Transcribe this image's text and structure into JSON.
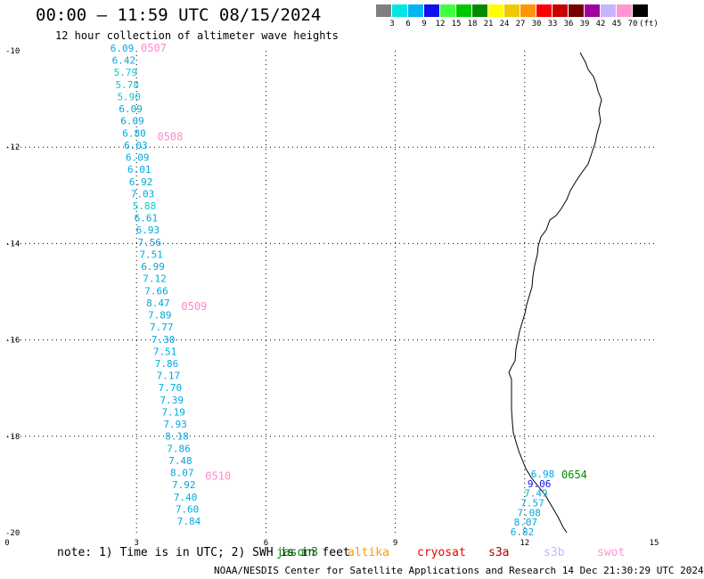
{
  "header": {
    "title": "00:00 – 11:59 UTC 08/15/2024",
    "subtitle": "12 hour collection of altimeter wave heights"
  },
  "color_scale": {
    "colors": [
      "#808080",
      "#00e5e5",
      "#00b4f0",
      "#1010f0",
      "#40ff40",
      "#00c800",
      "#008c00",
      "#ffff00",
      "#f0c800",
      "#ff9600",
      "#ff0000",
      "#c80000",
      "#780000",
      "#a000a0",
      "#c8b4ff",
      "#ff96d2",
      "#000000"
    ],
    "labels": [
      "3",
      "6",
      "9",
      "12",
      "15",
      "18",
      "21",
      "24",
      "27",
      "30",
      "33",
      "36",
      "39",
      "42",
      "45",
      "70",
      "(ft)"
    ]
  },
  "map": {
    "lat_range": [
      -20,
      -10
    ],
    "lon_range": [
      0,
      15
    ],
    "x_ticks": [
      "0",
      "3",
      "6",
      "9",
      "12",
      "15"
    ],
    "y_ticks": [
      "-10",
      "-12",
      "-14",
      "-16",
      "-18",
      "-20"
    ],
    "gridlines": "dotted"
  },
  "tracks": [
    {
      "pass_label": "0507",
      "label_color": "#ff88cc",
      "values": [
        "6.09",
        "6.42",
        "5.79",
        "5.78",
        "5.90",
        "6.09",
        "6.09",
        "6.80",
        "6.03",
        "6.09",
        "6.01",
        "6.92",
        "7.03",
        "5.88",
        "6.61",
        "6.93",
        "7.56",
        "7.51",
        "6.99",
        "7.12",
        "7.66",
        "8.47",
        "7.89",
        "7.77",
        "7.30",
        "7.51",
        "7.86",
        "7.17",
        "7.70",
        "7.39",
        "7.19",
        "7.93",
        "8.18",
        "7.86",
        "7.48",
        "8.07",
        "7.92",
        "7.40",
        "7.60",
        "7.84"
      ],
      "pass_labels_inline": [
        {
          "after_index": 7,
          "label": "0508"
        },
        {
          "after_index": 21,
          "label": "0509"
        },
        {
          "after_index": 35,
          "label": "0510"
        }
      ]
    },
    {
      "pass_label": "0654",
      "label_color": "#008800",
      "values": [
        "6.98",
        "9.06",
        "7.49",
        "7.57",
        "7.08",
        "8.07",
        "6.82"
      ]
    }
  ],
  "note": {
    "text": "note: 1) Time is in UTC; 2) SWH is in feet"
  },
  "satellites": [
    {
      "name": "jason3",
      "color": "#008800"
    },
    {
      "name": "altika",
      "color": "#ff9900"
    },
    {
      "name": "cryosat",
      "color": "#ee0000"
    },
    {
      "name": "s3a",
      "color": "#aa0000"
    },
    {
      "name": "s3b",
      "color": "#c8b4ff"
    },
    {
      "name": "swot",
      "color": "#ff96d2"
    }
  ],
  "footer": "NOAA/NESDIS Center for Satellite Applications and Research   14 Dec 21:30:29 UTC 2024"
}
